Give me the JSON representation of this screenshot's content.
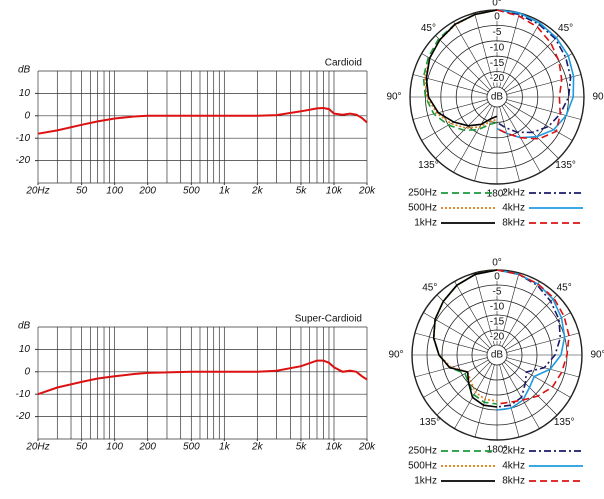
{
  "chart_data": [
    {
      "type": "line",
      "title": "Cardioid",
      "ylabel": "dB",
      "xscale": "log",
      "color": "#dd1111",
      "xlim": [
        20,
        20000
      ],
      "ylim": [
        -30,
        20
      ],
      "xticks": [
        {
          "value": 20,
          "label": "20Hz"
        },
        50,
        100,
        200,
        500,
        {
          "value": 1000,
          "label": "1k"
        },
        {
          "value": 2000,
          "label": "2k"
        },
        {
          "value": 5000,
          "label": "5k"
        },
        {
          "value": 10000,
          "label": "10k"
        },
        {
          "value": 20000,
          "label": "20k"
        }
      ],
      "xgrid": [
        20,
        30,
        40,
        50,
        60,
        70,
        80,
        90,
        100,
        200,
        300,
        400,
        500,
        600,
        700,
        800,
        900,
        1000,
        2000,
        3000,
        4000,
        5000,
        6000,
        7000,
        8000,
        9000,
        10000,
        20000
      ],
      "yticks": [
        10,
        0,
        -10,
        -20
      ],
      "ygrid": [
        20,
        10,
        0,
        -10,
        -20,
        -30
      ],
      "x": [
        20,
        30,
        50,
        70,
        100,
        150,
        200,
        500,
        1000,
        2000,
        3000,
        5000,
        7000,
        8000,
        9000,
        10000,
        12000,
        14000,
        16000,
        18000,
        20000
      ],
      "values": [
        -8,
        -6.5,
        -4,
        -2.5,
        -1.2,
        -0.3,
        0,
        0,
        0,
        0,
        0.3,
        2,
        3.3,
        3.5,
        3,
        1,
        0.5,
        1,
        0.5,
        -1,
        -3
      ]
    },
    {
      "type": "polar",
      "rlim": [
        -25,
        0
      ],
      "rticks": [
        0,
        -5,
        -10,
        -15,
        -20
      ],
      "r_label": "dB",
      "thetaticks": [
        {
          "value": 0,
          "label": "0°"
        },
        {
          "value": 45,
          "label": "45°"
        },
        {
          "value": 90,
          "label": "90°"
        },
        {
          "value": 135,
          "label": "135°"
        },
        {
          "value": 180,
          "label": "180°"
        },
        {
          "value": -45,
          "label": "45°"
        },
        {
          "value": -90,
          "label": "90°"
        },
        {
          "value": -135,
          "label": "135°"
        }
      ],
      "series": [
        {
          "name": "250Hz",
          "color": "#1a9a3a",
          "dash": "dashed",
          "theta": [
            0,
            -15,
            -30,
            -45,
            -60,
            -75,
            -90,
            -105,
            -120,
            -135,
            -150,
            -165,
            -180
          ],
          "values": [
            0,
            -0.5,
            -1,
            -1.5,
            -2.5,
            -3.5,
            -5,
            -7,
            -10,
            -13,
            -16,
            -19,
            -20
          ]
        },
        {
          "name": "500Hz",
          "color": "#e07b10",
          "dash": "dotted",
          "theta": [
            0,
            -15,
            -30,
            -45,
            -60,
            -75,
            -90,
            -105,
            -120,
            -135,
            -150,
            -165,
            -180
          ],
          "values": [
            0,
            -0.5,
            -1.2,
            -2,
            -3,
            -4,
            -5.5,
            -8,
            -11,
            -14,
            -17,
            -20,
            -21
          ]
        },
        {
          "name": "1kHz",
          "color": "#000000",
          "dash": "solid",
          "theta": [
            0,
            -15,
            -30,
            -45,
            -60,
            -75,
            -90,
            -105,
            -120,
            -135,
            -150,
            -165,
            -180
          ],
          "values": [
            0,
            -0.5,
            -1,
            -2,
            -3,
            -4.5,
            -6,
            -8.5,
            -12,
            -15,
            -18,
            -21,
            -22
          ]
        },
        {
          "name": "2kHz",
          "color": "#1a1a6a",
          "dash": "dashdot",
          "theta": [
            0,
            15,
            30,
            45,
            60,
            75,
            90,
            105,
            120,
            135,
            150,
            165,
            180
          ],
          "values": [
            0,
            -0.5,
            -1,
            -1.5,
            -2.5,
            -3.5,
            -5,
            -7,
            -9,
            -12,
            -15,
            -18,
            -20
          ]
        },
        {
          "name": "4kHz",
          "color": "#1e9be0",
          "dash": "solid",
          "theta": [
            0,
            15,
            30,
            45,
            60,
            75,
            90,
            105,
            120,
            135,
            150,
            165,
            180
          ],
          "values": [
            0,
            0,
            -0.5,
            -1,
            -1.5,
            -2.5,
            -3.5,
            -5,
            -7,
            -10,
            -13,
            -16,
            -18
          ]
        },
        {
          "name": "8kHz",
          "color": "#dd1111",
          "dash": "dashed",
          "theta": [
            0,
            15,
            30,
            45,
            60,
            75,
            90,
            105,
            120,
            135,
            150,
            165,
            180
          ],
          "values": [
            0,
            -1,
            -2,
            -3.5,
            -5,
            -6.5,
            -8,
            -7,
            -6,
            -9,
            -13,
            -16,
            -18
          ]
        }
      ]
    },
    {
      "type": "line",
      "title": "Super-Cardioid",
      "ylabel": "dB",
      "xscale": "log",
      "color": "#dd1111",
      "xlim": [
        20,
        20000
      ],
      "ylim": [
        -30,
        20
      ],
      "xticks": [
        {
          "value": 20,
          "label": "20Hz"
        },
        50,
        100,
        200,
        500,
        {
          "value": 1000,
          "label": "1k"
        },
        {
          "value": 2000,
          "label": "2k"
        },
        {
          "value": 5000,
          "label": "5k"
        },
        {
          "value": 10000,
          "label": "10k"
        },
        {
          "value": 20000,
          "label": "20k"
        }
      ],
      "xgrid": [
        20,
        30,
        40,
        50,
        60,
        70,
        80,
        90,
        100,
        200,
        300,
        400,
        500,
        600,
        700,
        800,
        900,
        1000,
        2000,
        3000,
        4000,
        5000,
        6000,
        7000,
        8000,
        9000,
        10000,
        20000
      ],
      "yticks": [
        10,
        0,
        -10,
        -20
      ],
      "ygrid": [
        20,
        10,
        0,
        -10,
        -20,
        -30
      ],
      "x": [
        20,
        30,
        50,
        70,
        100,
        150,
        200,
        500,
        1000,
        2000,
        3000,
        5000,
        7000,
        8000,
        9000,
        10000,
        12000,
        14000,
        16000,
        18000,
        20000
      ],
      "values": [
        -10,
        -7,
        -4.5,
        -3,
        -2,
        -1,
        -0.5,
        0,
        0,
        0,
        0.5,
        2.5,
        5,
        5,
        4,
        2,
        0,
        0.5,
        0,
        -2,
        -3.5
      ]
    },
    {
      "type": "polar",
      "rlim": [
        -25,
        0
      ],
      "rticks": [
        0,
        -5,
        -10,
        -15,
        -20
      ],
      "r_label": "dB",
      "thetaticks": [
        {
          "value": 0,
          "label": "0°"
        },
        {
          "value": 45,
          "label": "45°"
        },
        {
          "value": 90,
          "label": "90°"
        },
        {
          "value": 135,
          "label": "135°"
        },
        {
          "value": 180,
          "label": "180°"
        },
        {
          "value": -45,
          "label": "45°"
        },
        {
          "value": -90,
          "label": "90°"
        },
        {
          "value": -135,
          "label": "135°"
        }
      ],
      "series": [
        {
          "name": "250Hz",
          "color": "#1a9a3a",
          "dash": "dashed",
          "theta": [
            0,
            -15,
            -30,
            -45,
            -60,
            -75,
            -90,
            -105,
            -120,
            -135,
            -150,
            -165,
            -180
          ],
          "values": [
            0,
            -0.5,
            -1.5,
            -3,
            -4.5,
            -6.5,
            -9,
            -12,
            -16,
            -15,
            -13,
            -12,
            -12
          ]
        },
        {
          "name": "500Hz",
          "color": "#e07b10",
          "dash": "dotted",
          "theta": [
            0,
            -15,
            -30,
            -45,
            -60,
            -75,
            -90,
            -105,
            -120,
            -135,
            -150,
            -165,
            -180
          ],
          "values": [
            0,
            -0.5,
            -1.5,
            -3,
            -4.5,
            -6.5,
            -9,
            -12.5,
            -17,
            -16,
            -14,
            -13,
            -13
          ]
        },
        {
          "name": "1kHz",
          "color": "#000000",
          "dash": "solid",
          "theta": [
            0,
            -15,
            -30,
            -45,
            -60,
            -75,
            -90,
            -105,
            -120,
            -135,
            -150,
            -165,
            -180
          ],
          "values": [
            0,
            -0.5,
            -1.5,
            -3,
            -4.5,
            -6.5,
            -9,
            -12,
            -17,
            -15,
            -12,
            -11,
            -11
          ]
        },
        {
          "name": "2kHz",
          "color": "#1a1a6a",
          "dash": "dashdot",
          "theta": [
            0,
            15,
            30,
            45,
            60,
            75,
            90,
            105,
            120,
            135,
            150,
            165,
            180
          ],
          "values": [
            0,
            -0.5,
            -1.5,
            -3,
            -4.5,
            -6.5,
            -9,
            -12,
            -17,
            -15,
            -12,
            -11,
            -11
          ]
        },
        {
          "name": "4kHz",
          "color": "#1e9be0",
          "dash": "solid",
          "theta": [
            0,
            15,
            30,
            45,
            60,
            75,
            90,
            105,
            120,
            135,
            150,
            165,
            180
          ],
          "values": [
            0,
            -0.5,
            -1,
            -2,
            -3.5,
            -5,
            -7,
            -10,
            -14,
            -13,
            -11,
            -10,
            -10
          ]
        },
        {
          "name": "8kHz",
          "color": "#dd1111",
          "dash": "dashed",
          "theta": [
            0,
            15,
            30,
            45,
            60,
            75,
            90,
            105,
            120,
            135,
            150,
            165,
            180
          ],
          "values": [
            0,
            -0.5,
            -1,
            -1.5,
            -2.5,
            -3.5,
            -5,
            -6,
            -7,
            -9,
            -11,
            -12,
            -12
          ]
        }
      ]
    }
  ]
}
